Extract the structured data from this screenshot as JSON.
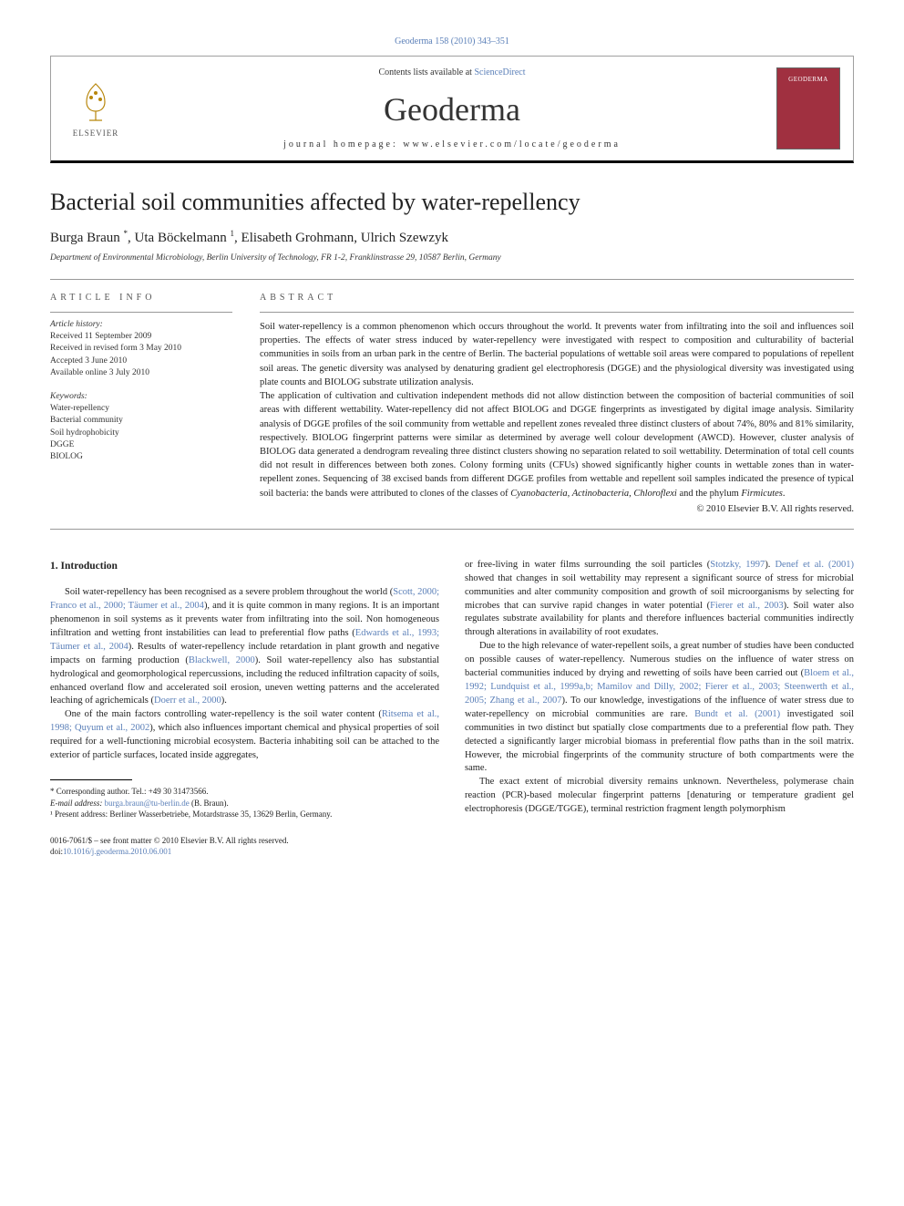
{
  "top_citation": "Geoderma 158 (2010) 343–351",
  "header": {
    "contents_prefix": "Contents lists available at ",
    "contents_link": "ScienceDirect",
    "journal": "Geoderma",
    "homepage_prefix": "journal homepage: ",
    "homepage_url": "www.elsevier.com/locate/geoderma",
    "publisher_logo_text": "ELSEVIER",
    "cover_text": "GEODERMA"
  },
  "title": "Bacterial soil communities affected by water-repellency",
  "authors_html": "Burga Braun <sup>*</sup>, Uta Böckelmann <sup>1</sup>, Elisabeth Grohmann, Ulrich Szewzyk",
  "affiliation": "Department of Environmental Microbiology, Berlin University of Technology, FR 1-2, Franklinstrasse 29, 10587 Berlin, Germany",
  "article_info": {
    "label": "ARTICLE INFO",
    "history_label": "Article history:",
    "history": [
      "Received 11 September 2009",
      "Received in revised form 3 May 2010",
      "Accepted 3 June 2010",
      "Available online 3 July 2010"
    ],
    "keywords_label": "Keywords:",
    "keywords": [
      "Water-repellency",
      "Bacterial community",
      "Soil hydrophobicity",
      "DGGE",
      "BIOLOG"
    ]
  },
  "abstract": {
    "label": "ABSTRACT",
    "para1": "Soil water-repellency is a common phenomenon which occurs throughout the world. It prevents water from infiltrating into the soil and influences soil properties. The effects of water stress induced by water-repellency were investigated with respect to composition and culturability of bacterial communities in soils from an urban park in the centre of Berlin. The bacterial populations of wettable soil areas were compared to populations of repellent soil areas. The genetic diversity was analysed by denaturing gradient gel electrophoresis (DGGE) and the physiological diversity was investigated using plate counts and BIOLOG substrate utilization analysis.",
    "para2": "The application of cultivation and cultivation independent methods did not allow distinction between the composition of bacterial communities of soil areas with different wettability. Water-repellency did not affect BIOLOG and DGGE fingerprints as investigated by digital image analysis. Similarity analysis of DGGE profiles of the soil community from wettable and repellent zones revealed three distinct clusters of about 74%, 80% and 81% similarity, respectively. BIOLOG fingerprint patterns were similar as determined by average well colour development (AWCD). However, cluster analysis of BIOLOG data generated a dendrogram revealing three distinct clusters showing no separation related to soil wettability. Determination of total cell counts did not result in differences between both zones. Colony forming units (CFUs) showed significantly higher counts in wettable zones than in water-repellent zones. Sequencing of 38 excised bands from different DGGE profiles from wettable and repellent soil samples indicated the presence of typical soil bacteria: the bands were attributed to clones of the classes of ",
    "taxa": "Cyanobacteria, Actinobacteria, Chloroflexi",
    "para2_tail": " and the phylum ",
    "phylum": "Firmicutes",
    "para2_end": ".",
    "copyright": "© 2010 Elsevier B.V. All rights reserved."
  },
  "intro": {
    "heading": "1. Introduction",
    "col1_p1_a": "Soil water-repellency has been recognised as a severe problem throughout the world (",
    "col1_p1_ref1": "Scott, 2000; Franco et al., 2000; Täumer et al., 2004",
    "col1_p1_b": "), and it is quite common in many regions. It is an important phenomenon in soil systems as it prevents water from infiltrating into the soil. Non homogeneous infiltration and wetting front instabilities can lead to preferential flow paths (",
    "col1_p1_ref2": "Edwards et al., 1993; Täumer et al., 2004",
    "col1_p1_c": "). Results of water-repellency include retardation in plant growth and negative impacts on farming production (",
    "col1_p1_ref3": "Blackwell, 2000",
    "col1_p1_d": "). Soil water-repellency also has substantial hydrological and geomorphological repercussions, including the reduced infiltration capacity of soils, enhanced overland flow and accelerated soil erosion, uneven wetting patterns and the accelerated leaching of agrichemicals (",
    "col1_p1_ref4": "Doerr et al., 2000",
    "col1_p1_e": ").",
    "col1_p2_a": "One of the main factors controlling water-repellency is the soil water content (",
    "col1_p2_ref1": "Ritsema et al., 1998; Quyum et al., 2002",
    "col1_p2_b": "), which also influences important chemical and physical properties of soil required for a well-functioning microbial ecosystem. Bacteria inhabiting soil can be attached to the exterior of particle surfaces, located inside aggregates,",
    "col2_p1_a": "or free-living in water films surrounding the soil particles (",
    "col2_p1_ref1": "Stotzky, 1997",
    "col2_p1_b": "). ",
    "col2_p1_ref2": "Denef et al. (2001)",
    "col2_p1_c": " showed that changes in soil wettability may represent a significant source of stress for microbial communities and alter community composition and growth of soil microorganisms by selecting for microbes that can survive rapid changes in water potential (",
    "col2_p1_ref3": "Fierer et al., 2003",
    "col2_p1_d": "). Soil water also regulates substrate availability for plants and therefore influences bacterial communities indirectly through alterations in availability of root exudates.",
    "col2_p2_a": "Due to the high relevance of water-repellent soils, a great number of studies have been conducted on possible causes of water-repellency. Numerous studies on the influence of water stress on bacterial communities induced by drying and rewetting of soils have been carried out (",
    "col2_p2_ref1": "Bloem et al., 1992; Lundquist et al., 1999a,b; Mamilov and Dilly, 2002; Fierer et al., 2003; Steenwerth et al., 2005; Zhang et al., 2007",
    "col2_p2_b": "). To our knowledge, investigations of the influence of water stress due to water-repellency on microbial communities are rare. ",
    "col2_p2_ref2": "Bundt et al. (2001)",
    "col2_p2_c": " investigated soil communities in two distinct but spatially close compartments due to a preferential flow path. They detected a significantly larger microbial biomass in preferential flow paths than in the soil matrix. However, the microbial fingerprints of the community structure of both compartments were the same.",
    "col2_p3": "The exact extent of microbial diversity remains unknown. Nevertheless, polymerase chain reaction (PCR)-based molecular fingerprint patterns [denaturing or temperature gradient gel electrophoresis (DGGE/TGGE), terminal restriction fragment length polymorphism"
  },
  "footnotes": {
    "corr": "* Corresponding author. Tel.: +49 30 31473566.",
    "email_label": "E-mail address:",
    "email": "burga.braun@tu-berlin.de",
    "email_suffix": " (B. Braun).",
    "present": "¹ Present address: Berliner Wasserbetriebe, Motardstrasse 35, 13629 Berlin, Germany."
  },
  "bottom": {
    "line1": "0016-7061/$ – see front matter © 2010 Elsevier B.V. All rights reserved.",
    "doi_label": "doi:",
    "doi": "10.1016/j.geoderma.2010.06.001"
  },
  "colors": {
    "link": "#5a7fb8",
    "cover_bg": "#a03040",
    "text": "#222222",
    "rule": "#999999"
  }
}
